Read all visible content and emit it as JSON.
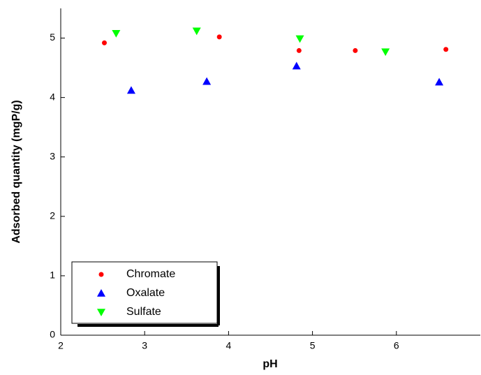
{
  "chart_data": {
    "type": "scatter",
    "x_label": "pH",
    "y_label": "Adsorbed quantity (mgP/g)",
    "xlim": [
      2,
      7
    ],
    "xticks": [
      2,
      3,
      4,
      5,
      6
    ],
    "ylim": [
      0,
      5.5
    ],
    "yticks": [
      0,
      1,
      2,
      3,
      4,
      5
    ],
    "legend": "lower left",
    "series": [
      {
        "name": "Chromate",
        "color": "#ff0000",
        "marker": "circle",
        "x": [
          2.52,
          3.89,
          4.84,
          5.51,
          6.59
        ],
        "values": [
          4.92,
          5.02,
          4.79,
          4.79,
          4.81
        ]
      },
      {
        "name": "Oxalate",
        "color": "#0000ff",
        "marker": "triangle-up",
        "x": [
          2.84,
          3.74,
          4.81,
          6.51
        ],
        "values": [
          4.12,
          4.27,
          4.53,
          4.26
        ]
      },
      {
        "name": "Sulfate",
        "color": "#00ff00",
        "marker": "triangle-down",
        "x": [
          2.66,
          3.62,
          4.85,
          5.87
        ],
        "values": [
          5.08,
          5.12,
          4.99,
          4.77
        ]
      }
    ]
  }
}
